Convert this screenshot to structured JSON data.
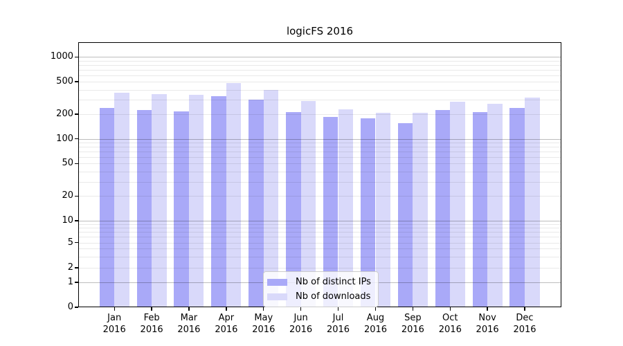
{
  "figure": {
    "background": "#ffffff",
    "axis_color": "#000000",
    "major_grid_color": "#bdbdbd",
    "minor_grid_color": "#e9e9e9"
  },
  "chart_data": {
    "type": "bar",
    "title": "logicFS 2016",
    "categories": [
      "Jan 2016",
      "Feb 2016",
      "Mar 2016",
      "Apr 2016",
      "May 2016",
      "Jun 2016",
      "Jul 2016",
      "Aug 2016",
      "Sep 2016",
      "Oct 2016",
      "Nov 2016",
      "Dec 2016"
    ],
    "series": [
      {
        "name": "Nb of distinct IPs",
        "color": "#a9a9f8",
        "values": [
          240,
          224,
          215,
          330,
          301,
          211,
          184,
          178,
          155,
          226,
          214,
          240
        ]
      },
      {
        "name": "Nb of downloads",
        "color": "#d9d9fa",
        "values": [
          368,
          350,
          345,
          485,
          395,
          292,
          230,
          209,
          209,
          286,
          270,
          320
        ]
      }
    ],
    "xlabel": "",
    "ylabel": "",
    "yscale": "symlog",
    "yticks": [
      0,
      1,
      2,
      5,
      10,
      20,
      50,
      100,
      200,
      500,
      1000
    ],
    "ylim": [
      0,
      1500
    ],
    "grid": "horizontal major+minor, drawn over bars",
    "legend_position": "lower center"
  }
}
